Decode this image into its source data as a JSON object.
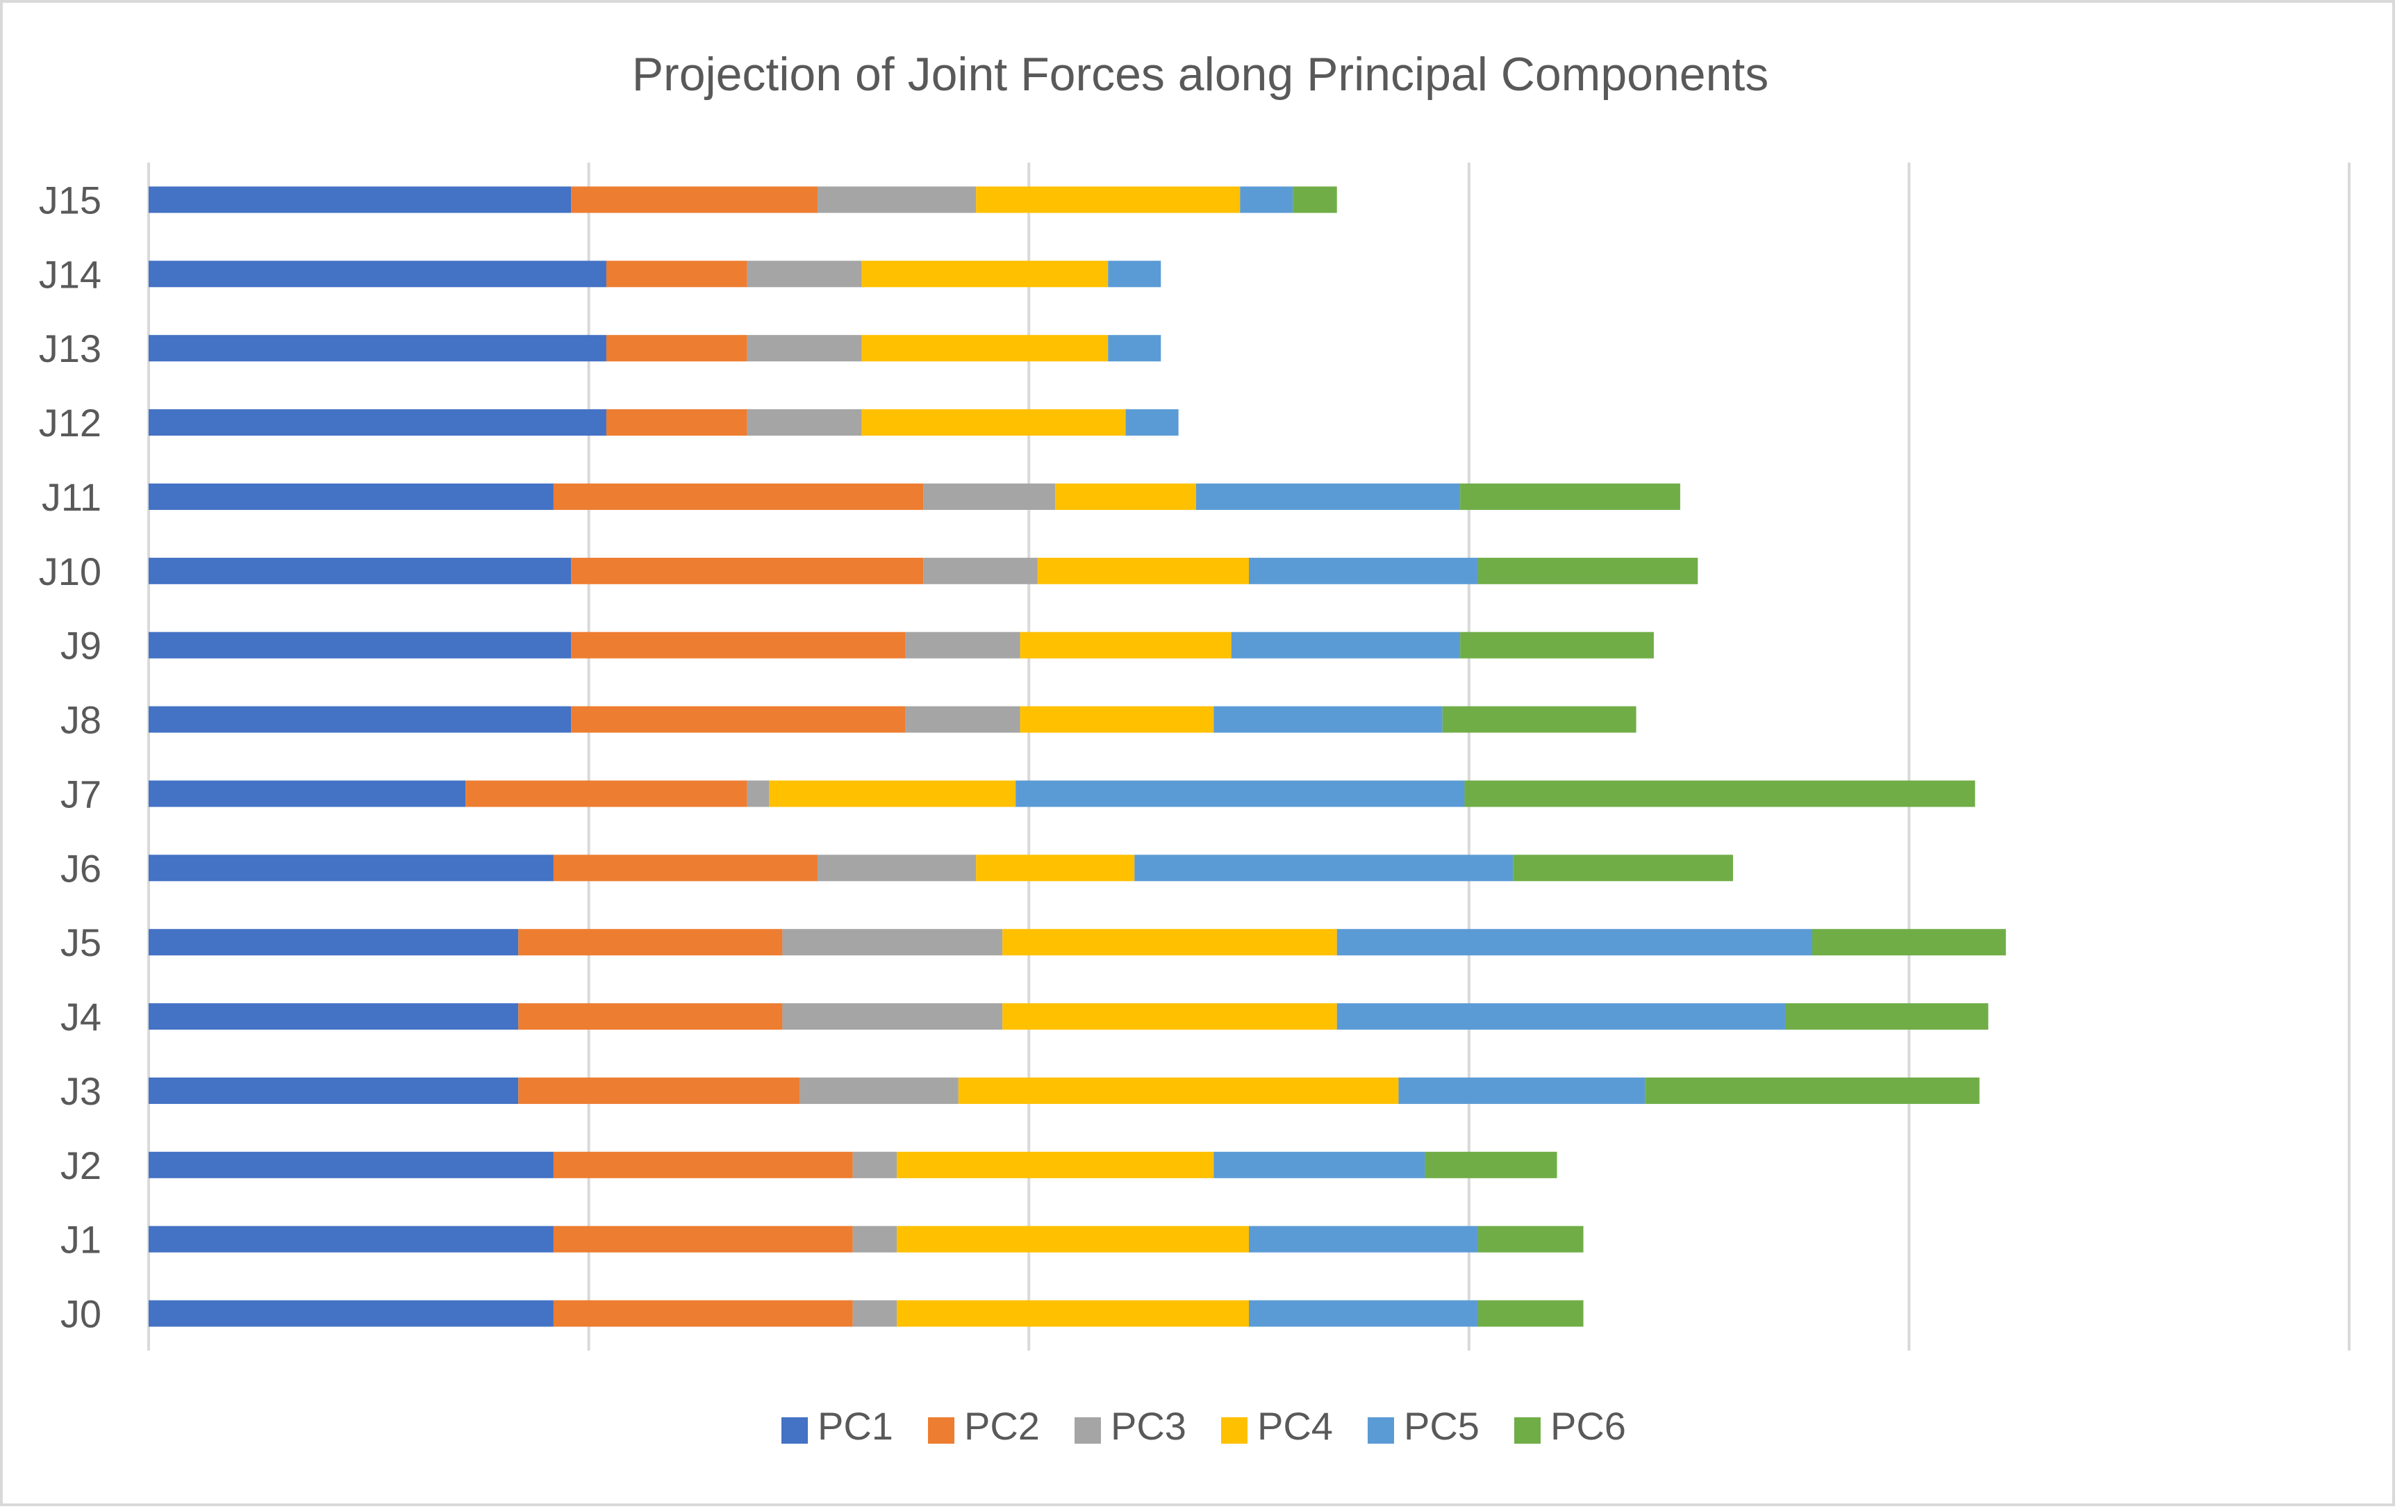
{
  "chart_data": {
    "type": "bar",
    "orientation": "horizontal",
    "stacked": true,
    "title": "Projection of Joint Forces along Principal Components",
    "xlabel": "",
    "ylabel": "",
    "xlim": [
      0,
      25
    ],
    "x_gridlines": [
      0,
      5,
      10,
      15,
      20,
      25
    ],
    "x_tick_labels_visible": false,
    "grid": true,
    "legend_position": "bottom",
    "categories": [
      "J0",
      "J1",
      "J2",
      "J3",
      "J4",
      "J5",
      "J6",
      "J7",
      "J8",
      "J9",
      "J10",
      "J11",
      "J12",
      "J13",
      "J14",
      "J15"
    ],
    "series": [
      {
        "name": "PC1",
        "color": "#4472C4",
        "values": [
          4.6,
          4.6,
          4.6,
          4.2,
          4.2,
          4.2,
          4.6,
          3.6,
          4.8,
          4.8,
          4.8,
          4.6,
          5.2,
          5.2,
          5.2,
          4.8
        ]
      },
      {
        "name": "PC2",
        "color": "#ED7D31",
        "values": [
          3.4,
          3.4,
          3.4,
          3.2,
          3.0,
          3.0,
          3.0,
          3.2,
          3.8,
          3.8,
          4.0,
          4.2,
          1.6,
          1.6,
          1.6,
          2.8
        ]
      },
      {
        "name": "PC3",
        "color": "#A5A5A5",
        "values": [
          0.5,
          0.5,
          0.5,
          1.8,
          2.5,
          2.5,
          1.8,
          0.25,
          1.3,
          1.3,
          1.3,
          1.5,
          1.3,
          1.3,
          1.3,
          1.8
        ]
      },
      {
        "name": "PC4",
        "color": "#FFC000",
        "values": [
          4.0,
          4.0,
          3.6,
          5.0,
          3.8,
          3.8,
          1.8,
          2.8,
          2.2,
          2.4,
          2.4,
          1.6,
          3.0,
          2.8,
          2.8,
          3.0
        ]
      },
      {
        "name": "PC5",
        "color": "#5B9BD5",
        "values": [
          2.6,
          2.6,
          2.4,
          2.8,
          5.1,
          5.4,
          4.3,
          5.1,
          2.6,
          2.6,
          2.6,
          3.0,
          0.6,
          0.6,
          0.6,
          0.6
        ]
      },
      {
        "name": "PC6",
        "color": "#70AD47",
        "values": [
          1.2,
          1.2,
          1.5,
          3.8,
          2.3,
          2.2,
          2.5,
          5.8,
          2.2,
          2.2,
          2.5,
          2.5,
          0,
          0,
          0,
          0.5
        ]
      }
    ]
  }
}
